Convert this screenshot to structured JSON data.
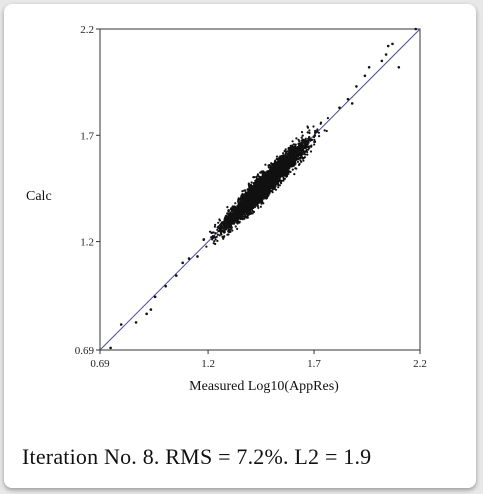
{
  "chart_data": {
    "type": "scatter",
    "title": "",
    "xlabel": "Measured Log10(AppRes)",
    "ylabel": "Calc",
    "xlim": [
      0.69,
      2.2
    ],
    "ylim": [
      0.69,
      2.2
    ],
    "x_ticks": [
      "0.69",
      "1.2",
      "1.7",
      "2.2"
    ],
    "y_ticks": [
      "0.69",
      "1.2",
      "1.7",
      "2.2"
    ],
    "reference_line": {
      "from": [
        0.69,
        0.69
      ],
      "to": [
        2.2,
        2.2
      ]
    },
    "point_color": "#111111",
    "line_color": "#4a4a9a",
    "cluster": {
      "x_center": 1.47,
      "x_spread": 0.13,
      "y_scatter": 0.04
    },
    "outliers": [
      {
        "x": 0.74,
        "y": 0.7
      },
      {
        "x": 0.79,
        "y": 0.81
      },
      {
        "x": 0.86,
        "y": 0.82
      },
      {
        "x": 0.91,
        "y": 0.86
      },
      {
        "x": 0.93,
        "y": 0.88
      },
      {
        "x": 0.95,
        "y": 0.94
      },
      {
        "x": 1.0,
        "y": 0.99
      },
      {
        "x": 1.05,
        "y": 1.04
      },
      {
        "x": 1.08,
        "y": 1.1
      },
      {
        "x": 1.11,
        "y": 1.12
      },
      {
        "x": 1.15,
        "y": 1.13
      },
      {
        "x": 1.18,
        "y": 1.21
      },
      {
        "x": 1.82,
        "y": 1.83
      },
      {
        "x": 1.86,
        "y": 1.87
      },
      {
        "x": 1.88,
        "y": 1.85
      },
      {
        "x": 1.9,
        "y": 1.93
      },
      {
        "x": 1.94,
        "y": 1.98
      },
      {
        "x": 1.96,
        "y": 2.02
      },
      {
        "x": 2.02,
        "y": 2.05
      },
      {
        "x": 2.04,
        "y": 2.08
      },
      {
        "x": 2.05,
        "y": 2.12
      },
      {
        "x": 2.07,
        "y": 2.13
      },
      {
        "x": 2.1,
        "y": 2.02
      },
      {
        "x": 2.18,
        "y": 2.2
      }
    ]
  },
  "caption": "Iteration No. 8.  RMS = 7.2%.  L2 = 1.9"
}
